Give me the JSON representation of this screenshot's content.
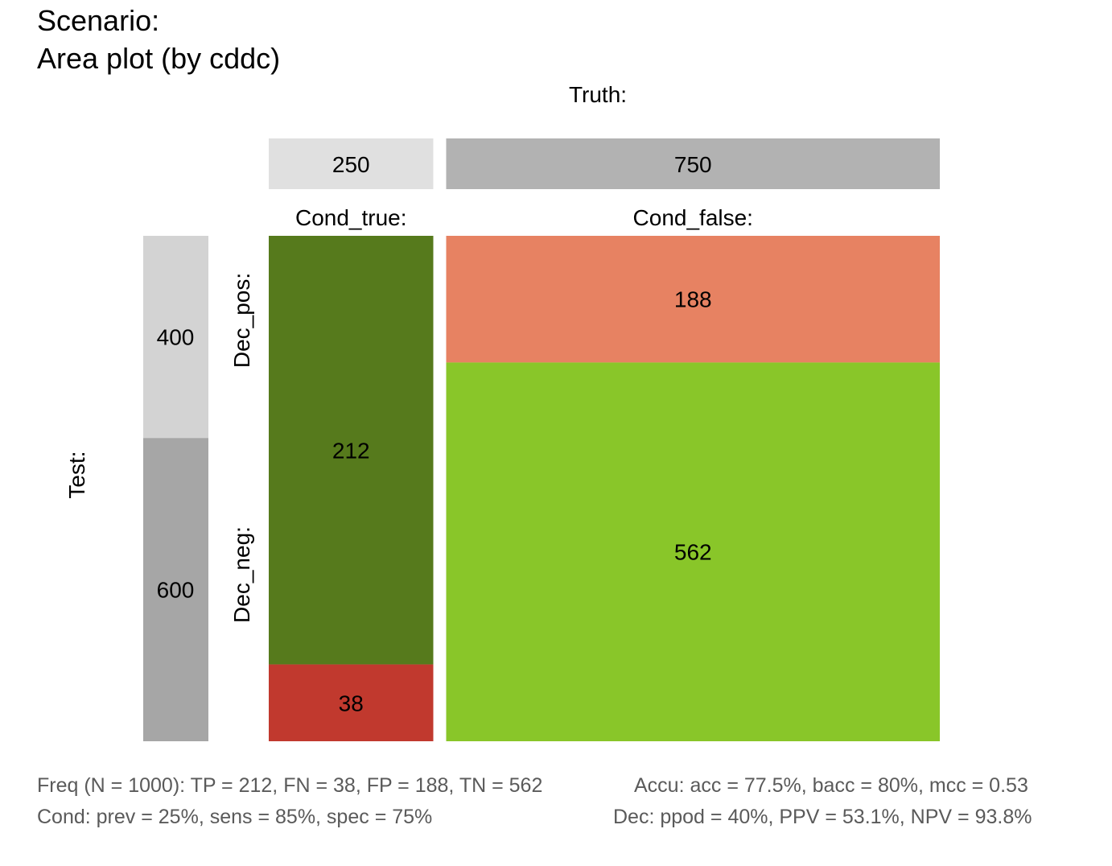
{
  "chart_data": {
    "type": "area",
    "title_line1": "Scenario:",
    "title_line2": "Area plot (by cddc)",
    "truth_label": "Truth:",
    "test_label": "Test:",
    "columns": [
      {
        "label": "Cond_true:",
        "total": 250
      },
      {
        "label": "Cond_false:",
        "total": 750
      }
    ],
    "rows": [
      {
        "label": "Dec_pos:",
        "total": 400
      },
      {
        "label": "Dec_neg:",
        "total": 600
      }
    ],
    "cells": [
      {
        "name": "TP",
        "value": 212,
        "column": 0,
        "order": 0
      },
      {
        "name": "FN",
        "value": 38,
        "column": 0,
        "order": 1
      },
      {
        "name": "FP",
        "value": 188,
        "column": 1,
        "order": 0
      },
      {
        "name": "TN",
        "value": 562,
        "column": 1,
        "order": 1
      }
    ],
    "N": 1000,
    "footer": {
      "freq": "Freq (N = 1000):  TP = 212, FN = 38, FP = 188, TN = 562",
      "accu": "Accu:  acc = 77.5%, bacc = 80%, mcc = 0.53",
      "cond": "Cond:  prev = 25%, sens = 85%, spec = 75%",
      "dec": "Dec:  ppod = 40%, PPV = 53.1%, NPV = 93.8%"
    }
  },
  "colors": {
    "TP": "#567a1c",
    "FN": "#c1392e",
    "FP": "#e78262",
    "TN": "#89c629",
    "cond_true_bar": "#e0e0e0",
    "cond_false_bar": "#b2b2b2",
    "dec_pos_bar": "#d3d3d3",
    "dec_neg_bar": "#a6a6a6"
  }
}
